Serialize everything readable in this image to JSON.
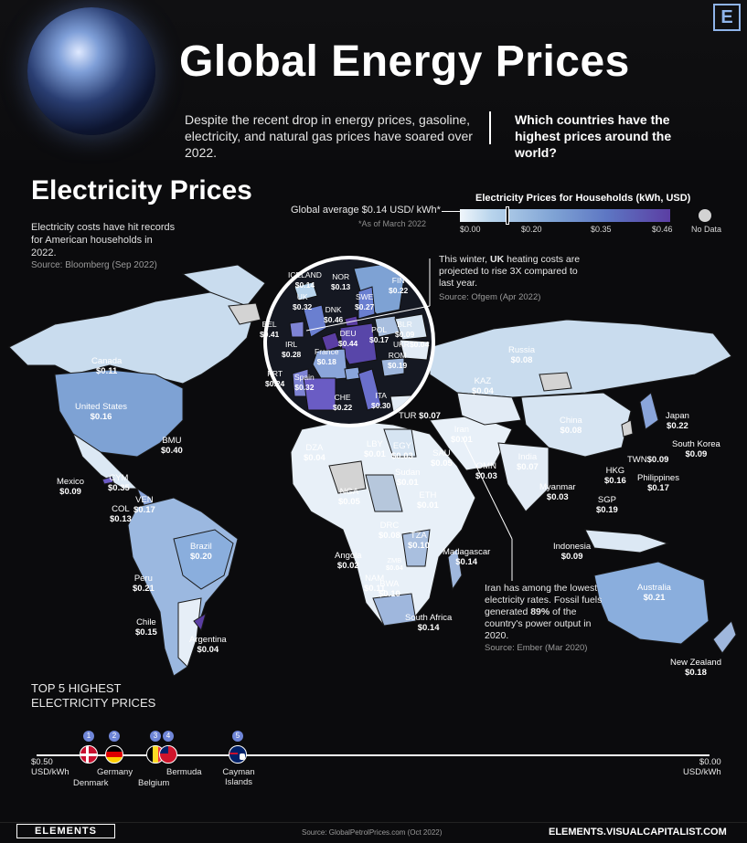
{
  "header": {
    "title": "Global Energy Prices",
    "intro": "Despite the recent drop in energy prices, gasoline, electricity, and natural gas prices have soared over 2022.",
    "question": "Which countries have the highest prices around the world?",
    "logo_letter": "E"
  },
  "section": {
    "title": "Electricity Prices",
    "note": "Electricity costs have hit records for American households in 2022.",
    "source": "Source: Bloomberg (Sep 2022)"
  },
  "average": {
    "label": "Global average $0.14 USD/ kWh*",
    "date": "*As of March 2022"
  },
  "legend": {
    "title": "Electricity Prices for Households (kWh, USD)",
    "ticks": [
      "$0.00",
      "$0.20",
      "$0.35",
      "$0.46"
    ],
    "no_data": "No Data",
    "colors": [
      "#f0f6fb",
      "#b8d4ec",
      "#7ea2d4",
      "#5d76c3",
      "#5b3ea3"
    ],
    "no_data_color": "#d3d3d3"
  },
  "countries": [
    {
      "name": "Canada",
      "value": "$0.11"
    },
    {
      "name": "United States",
      "value": "$0.16"
    },
    {
      "name": "BMU",
      "value": "$0.40"
    },
    {
      "name": "Mexico",
      "value": "$0.09"
    },
    {
      "name": "CYM",
      "value": "$0.35"
    },
    {
      "name": "VEN",
      "value": "$0.17"
    },
    {
      "name": "COL",
      "value": "$0.13"
    },
    {
      "name": "Brazil",
      "value": "$0.20"
    },
    {
      "name": "Peru",
      "value": "$0.21"
    },
    {
      "name": "Chile",
      "value": "$0.15"
    },
    {
      "name": "Argentina",
      "value": "$0.04"
    },
    {
      "name": "DZA",
      "value": "$0.04"
    },
    {
      "name": "LBY",
      "value": "$0.01"
    },
    {
      "name": "EGY",
      "value": "$0.03"
    },
    {
      "name": "Sudan",
      "value": "$0.01"
    },
    {
      "name": "NGA",
      "value": "$0.05"
    },
    {
      "name": "ETH",
      "value": "$0.01"
    },
    {
      "name": "DRC",
      "value": "$0.08"
    },
    {
      "name": "TZA",
      "value": "$0.10"
    },
    {
      "name": "ZMB",
      "value": "$0.04"
    },
    {
      "name": "NAM",
      "value": "$0.11"
    },
    {
      "name": "BWA",
      "value": "$0.10"
    },
    {
      "name": "Angola",
      "value": "$0.02"
    },
    {
      "name": "South Africa",
      "value": "$0.14"
    },
    {
      "name": "Madagascar",
      "value": "$0.14"
    },
    {
      "name": "TUR",
      "value": "$0.07"
    },
    {
      "name": "Iran",
      "value": "$0.01"
    },
    {
      "name": "SAU",
      "value": "$0.05"
    },
    {
      "name": "OMN",
      "value": "$0.03"
    },
    {
      "name": "Russia",
      "value": "$0.08"
    },
    {
      "name": "KAZ",
      "value": "$0.04"
    },
    {
      "name": "China",
      "value": "$0.08"
    },
    {
      "name": "India",
      "value": "$0.07"
    },
    {
      "name": "Myanmar",
      "value": "$0.03"
    },
    {
      "name": "Japan",
      "value": "$0.22"
    },
    {
      "name": "South Korea",
      "value": "$0.09"
    },
    {
      "name": "TWN",
      "value": "$0.09"
    },
    {
      "name": "HKG",
      "value": "$0.16"
    },
    {
      "name": "Philippines",
      "value": "$0.17"
    },
    {
      "name": "SGP",
      "value": "$0.19"
    },
    {
      "name": "Indonesia",
      "value": "$0.09"
    },
    {
      "name": "Australia",
      "value": "$0.21"
    },
    {
      "name": "New Zealand",
      "value": "$0.18"
    }
  ],
  "europe": [
    {
      "name": "ICELAND",
      "value": "$0.14"
    },
    {
      "name": "NOR",
      "value": "$0.13"
    },
    {
      "name": "FIN",
      "value": "$0.22"
    },
    {
      "name": "UK",
      "value": "$0.32"
    },
    {
      "name": "SWE",
      "value": "$0.27"
    },
    {
      "name": "DNK",
      "value": "$0.46"
    },
    {
      "name": "BEL",
      "value": "$0.41"
    },
    {
      "name": "DEU",
      "value": "$0.44"
    },
    {
      "name": "POL",
      "value": "$0.17"
    },
    {
      "name": "BLR",
      "value": "$0.09"
    },
    {
      "name": "UKR",
      "value": "$0.04"
    },
    {
      "name": "IRL",
      "value": "$0.28"
    },
    {
      "name": "France",
      "value": "$0.18"
    },
    {
      "name": "ROM",
      "value": "$0.19"
    },
    {
      "name": "PRT",
      "value": "$0.24"
    },
    {
      "name": "Spain",
      "value": "$0.32"
    },
    {
      "name": "CHE",
      "value": "$0.22"
    },
    {
      "name": "ITA",
      "value": "$0.30"
    }
  ],
  "uk_note": {
    "pre": "This winter, ",
    "bold": "UK",
    "post": " heating costs are projected to rise 3X compared to last year.",
    "source": "Source: Ofgem (Apr 2022)"
  },
  "iran_note": {
    "pre": "Iran has among the lowest electricity rates. Fossil fuels generated ",
    "bold": "89%",
    "post": " of the country's power output in 2020.",
    "source": "Source: Ember (Mar 2020)"
  },
  "top5": {
    "title_line1": "TOP 5 HIGHEST",
    "title_line2": "ELECTRICITY PRICES",
    "left_label": "$0.50",
    "left_unit": "USD/kWh",
    "right_label": "$0.00",
    "right_unit": "USD/kWh",
    "items": [
      {
        "rank": "1",
        "name": "Denmark",
        "price": 0.46
      },
      {
        "rank": "2",
        "name": "Germany",
        "price": 0.44
      },
      {
        "rank": "3",
        "name": "Belgium",
        "price": 0.41
      },
      {
        "rank": "4",
        "name": "Bermuda",
        "price": 0.4
      },
      {
        "rank": "5",
        "name": "Cayman Islands",
        "price": 0.35
      }
    ]
  },
  "footer": {
    "logo": "ELEMENTS",
    "source": "Source: GlobalPetrolPrices.com (Oct 2022)",
    "site": "ELEMENTS.VISUALCAPITALIST.COM"
  }
}
